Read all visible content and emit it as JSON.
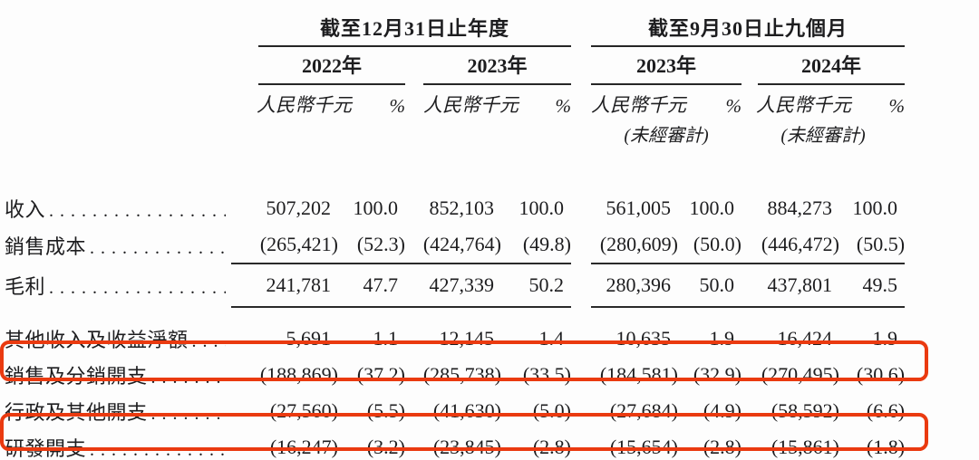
{
  "table": {
    "highlight_color": "#ea3a10",
    "units_label": "人民幣千元",
    "percent_label": "%",
    "groups": [
      {
        "title": "截至12月31日止年度",
        "years": [
          {
            "label": "2022年",
            "unaudited": ""
          },
          {
            "label": "2023年",
            "unaudited": ""
          }
        ]
      },
      {
        "title": "截至9月30日止九個月",
        "years": [
          {
            "label": "2023年",
            "unaudited": "(未經審計)"
          },
          {
            "label": "2024年",
            "unaudited": "(未經審計)"
          }
        ]
      }
    ],
    "rows": [
      {
        "label": "收入",
        "style": "normal",
        "highlighted": false,
        "values": [
          "507,202",
          "100.0",
          "852,103",
          "100.0",
          "561,005",
          "100.0",
          "884,273",
          "100.0"
        ]
      },
      {
        "label": "銷售成本",
        "style": "underline",
        "highlighted": false,
        "values": [
          "(265,421)",
          "(52.3)",
          "(424,764)",
          "(49.8)",
          "(280,609)",
          "(50.0)",
          "(446,472)",
          "(50.5)"
        ]
      },
      {
        "label": "毛利",
        "style": "bold-underline",
        "highlighted": false,
        "values": [
          "241,781",
          "47.7",
          "427,339",
          "50.2",
          "280,396",
          "50.0",
          "437,801",
          "49.5"
        ]
      },
      {
        "label": "其他收入及收益淨額",
        "style": "normal",
        "highlighted": false,
        "values": [
          "5,691",
          "1.1",
          "12,145",
          "1.4",
          "10,635",
          "1.9",
          "16,424",
          "1.9"
        ]
      },
      {
        "label": "銷售及分銷開支",
        "style": "normal",
        "highlighted": true,
        "values": [
          "(188,869)",
          "(37.2)",
          "(285,738)",
          "(33.5)",
          "(184,581)",
          "(32.9)",
          "(270,495)",
          "(30.6)"
        ]
      },
      {
        "label": "行政及其他開支",
        "style": "normal",
        "highlighted": false,
        "values": [
          "(27,560)",
          "(5.5)",
          "(41,630)",
          "(5.0)",
          "(27,684)",
          "(4.9)",
          "(58,592)",
          "(6.6)"
        ]
      },
      {
        "label": "研發開支",
        "style": "normal",
        "highlighted": true,
        "values": [
          "(16,247)",
          "(3.2)",
          "(23,845)",
          "(2.8)",
          "(15,654)",
          "(2.8)",
          "(15,861)",
          "(1.8)"
        ]
      }
    ]
  }
}
